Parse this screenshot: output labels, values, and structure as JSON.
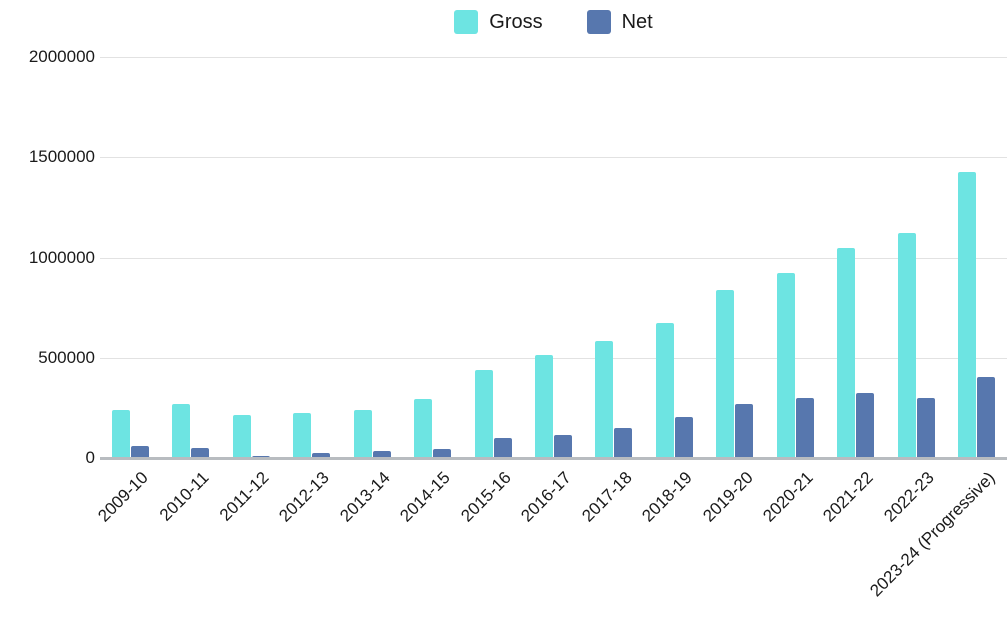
{
  "chart_data": {
    "type": "bar",
    "title": "",
    "xlabel": "",
    "ylabel": "",
    "categories": [
      "2009-10",
      "2010-11",
      "2011-12",
      "2012-13",
      "2013-14",
      "2014-15",
      "2015-16",
      "2016-17",
      "2017-18",
      "2018-19",
      "2019-20",
      "2020-21",
      "2021-22",
      "2022-23",
      "2023-24 (Progressive)"
    ],
    "series": [
      {
        "name": "Gross",
        "color": "#6de4e2",
        "values": [
          240000,
          270000,
          215000,
          225000,
          240000,
          295000,
          440000,
          515000,
          585000,
          675000,
          840000,
          925000,
          1045000,
          1120000,
          1425000
        ]
      },
      {
        "name": "Net",
        "color": "#5777ae",
        "values": [
          60000,
          50000,
          10000,
          25000,
          35000,
          45000,
          100000,
          115000,
          150000,
          205000,
          270000,
          300000,
          325000,
          300000,
          405000
        ]
      }
    ],
    "ylim": [
      0,
      2000000
    ],
    "yticks": [
      0,
      500000,
      1000000,
      1500000,
      2000000
    ],
    "ytick_labels": [
      "0",
      "500000",
      "1000000",
      "1500000",
      "2000000"
    ],
    "grid": true,
    "legend_position": "top-center",
    "colors": {
      "gridline": "#e2e2e2",
      "axis_line": "#b8bcc0",
      "text": "#1a1a1a",
      "background": "#ffffff"
    }
  }
}
